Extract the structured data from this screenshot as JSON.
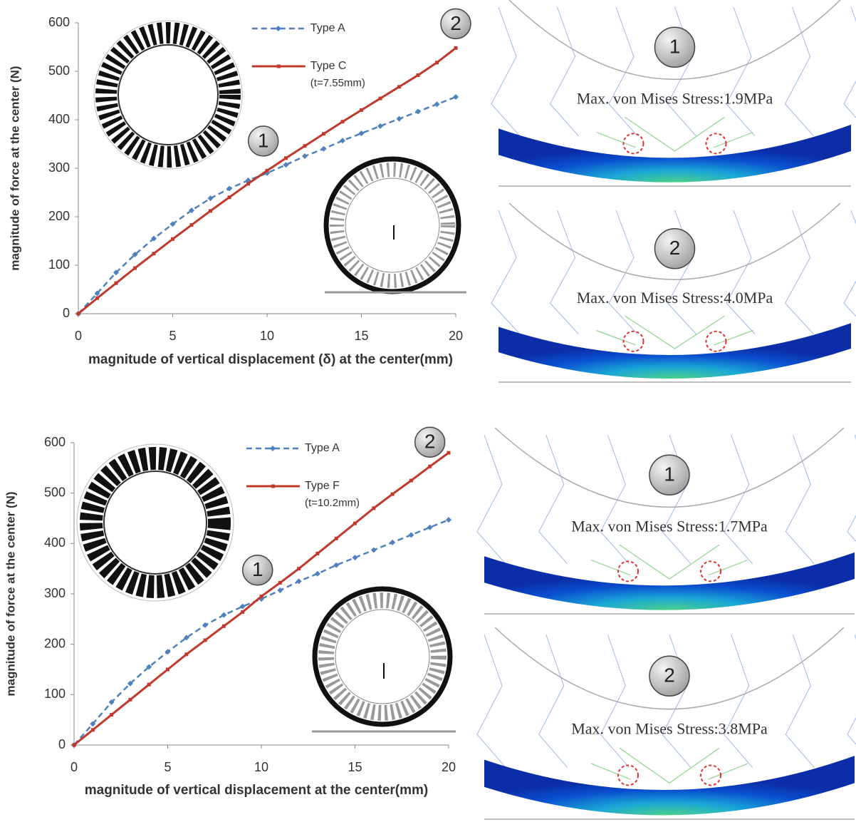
{
  "chart_data": [
    {
      "type": "line",
      "x_label": "magnitude of vertical displacement  (δ) at the center(mm)",
      "y_label": "magnitude of force at the center (N)",
      "x": [
        0,
        1,
        2,
        3,
        4,
        5,
        6,
        7,
        8,
        9,
        10,
        11,
        12,
        13,
        14,
        15,
        16,
        17,
        18,
        19,
        20
      ],
      "series": [
        {
          "name": "Type A",
          "color": "#4f81bd",
          "style": "dashed",
          "marker": "diamond",
          "values": [
            0,
            42,
            85,
            122,
            155,
            185,
            213,
            238,
            258,
            275,
            290,
            307,
            325,
            340,
            357,
            372,
            387,
            402,
            417,
            432,
            447
          ]
        },
        {
          "name": "Type C",
          "note": "(t=7.55mm)",
          "color": "#c0392b",
          "style": "solid",
          "marker": "square",
          "values": [
            0,
            32,
            63,
            94,
            124,
            154,
            183,
            212,
            240,
            268,
            295,
            321,
            346,
            371,
            396,
            420,
            444,
            468,
            492,
            518,
            548
          ]
        }
      ],
      "xlim": [
        0,
        20
      ],
      "xticks": [
        0,
        5,
        10,
        15,
        20
      ],
      "ylim": [
        0,
        600
      ],
      "yticks": [
        0,
        100,
        200,
        300,
        400,
        500,
        600
      ],
      "annotations": [
        {
          "text": "1",
          "x": 9.8,
          "y": 356
        },
        {
          "text": "2",
          "x": 20,
          "y": 598
        }
      ]
    },
    {
      "type": "line",
      "x_label": "magnitude of vertical displacement at the center(mm)",
      "y_label": "magnitude of force at the center (N)",
      "x": [
        0,
        1,
        2,
        3,
        4,
        5,
        6,
        7,
        8,
        9,
        10,
        11,
        12,
        13,
        14,
        15,
        16,
        17,
        18,
        19,
        20
      ],
      "series": [
        {
          "name": "Type A",
          "color": "#4f81bd",
          "style": "dashed",
          "marker": "diamond",
          "values": [
            0,
            42,
            85,
            122,
            155,
            185,
            213,
            238,
            258,
            275,
            290,
            307,
            325,
            340,
            357,
            372,
            387,
            402,
            417,
            432,
            447
          ]
        },
        {
          "name": "Type F",
          "note": "(t=10.2mm)",
          "color": "#c0392b",
          "style": "solid",
          "marker": "square",
          "values": [
            0,
            30,
            60,
            90,
            120,
            150,
            180,
            208,
            236,
            264,
            295,
            322,
            350,
            380,
            410,
            440,
            470,
            498,
            525,
            553,
            580
          ]
        }
      ],
      "xlim": [
        0,
        20
      ],
      "xticks": [
        0,
        5,
        10,
        15,
        20
      ],
      "ylim": [
        0,
        600
      ],
      "yticks": [
        0,
        100,
        200,
        300,
        400,
        500,
        600
      ],
      "annotations": [
        {
          "text": "1",
          "x": 9.8,
          "y": 347
        },
        {
          "text": "2",
          "x": 19,
          "y": 601
        }
      ]
    }
  ],
  "stress_panels": [
    {
      "marker": "1",
      "label": "Max. von Mises Stress:1.9MPa"
    },
    {
      "marker": "2",
      "label": "Max. von Mises Stress:4.0MPa"
    },
    {
      "marker": "1",
      "label": "Max. von Mises Stress:1.7MPa"
    },
    {
      "marker": "2",
      "label": "Max. von Mises Stress:3.8MPa"
    }
  ]
}
